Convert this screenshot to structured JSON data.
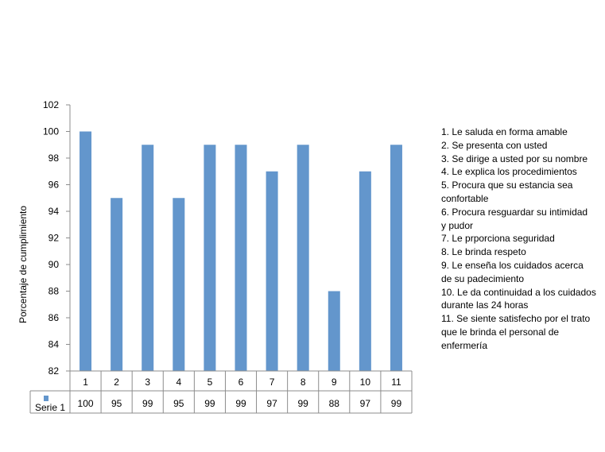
{
  "chart_data": {
    "type": "bar",
    "categories": [
      "1",
      "2",
      "3",
      "4",
      "5",
      "6",
      "7",
      "8",
      "9",
      "10",
      "11"
    ],
    "series": [
      {
        "name": "Serie 1",
        "values": [
          100,
          95,
          99,
          95,
          99,
          99,
          97,
          99,
          88,
          97,
          99
        ],
        "color": "#6396cc"
      }
    ],
    "ylabel": "Porcentaje de cumplimiento",
    "ylim": [
      82,
      102
    ],
    "yticks": [
      "82",
      "84",
      "86",
      "88",
      "90",
      "92",
      "94",
      "96",
      "98",
      "100",
      "102"
    ],
    "grid": false,
    "data_table": true,
    "legend_position": "data-table"
  },
  "notes": [
    "1. Le saluda en forma amable",
    "2. Se presenta con usted",
    "3. Se dirige a usted por su nombre",
    "4. Le explica los procedimientos",
    "5. Procura que su estancia sea",
    "confortable",
    "6. Procura resguardar su intimidad",
    "y pudor",
    "7. Le prporciona seguridad",
    "8. Le brinda respeto",
    "9. Le enseña los cuidados acerca",
    "de su padecimiento",
    "10. Le da continuidad a los cuidados",
    "durante las 24 horas",
    "11. Se siente satisfecho  por el trato",
    "que le brinda el personal de",
    "enfermería"
  ]
}
